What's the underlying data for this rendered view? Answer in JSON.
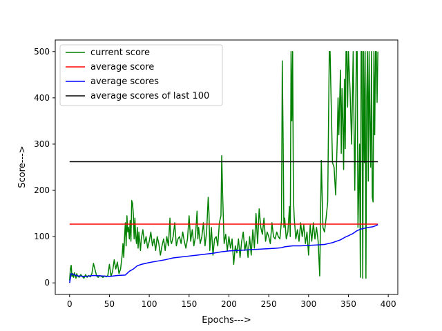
{
  "chart_data": {
    "type": "line",
    "title": "",
    "xlabel": "Epochs--->",
    "ylabel": "Score--->",
    "xlim": [
      -18,
      412
    ],
    "ylim": [
      -25,
      525
    ],
    "xticks": [
      0,
      50,
      100,
      150,
      200,
      250,
      300,
      350,
      400
    ],
    "yticks": [
      0,
      100,
      200,
      300,
      400,
      500
    ],
    "grid": false,
    "legend_position": "top-left",
    "series": [
      {
        "name": "current score",
        "color": "#008000",
        "points": [
          [
            0,
            5
          ],
          [
            1,
            30
          ],
          [
            2,
            38
          ],
          [
            3,
            14
          ],
          [
            4,
            20
          ],
          [
            5,
            12
          ],
          [
            6,
            22
          ],
          [
            7,
            16
          ],
          [
            8,
            10
          ],
          [
            9,
            20
          ],
          [
            10,
            15
          ],
          [
            12,
            12
          ],
          [
            14,
            18
          ],
          [
            16,
            14
          ],
          [
            18,
            10
          ],
          [
            20,
            18
          ],
          [
            22,
            12
          ],
          [
            24,
            16
          ],
          [
            26,
            13
          ],
          [
            28,
            20
          ],
          [
            30,
            42
          ],
          [
            32,
            28
          ],
          [
            34,
            15
          ],
          [
            36,
            12
          ],
          [
            38,
            16
          ],
          [
            40,
            14
          ],
          [
            42,
            12
          ],
          [
            44,
            15
          ],
          [
            46,
            13
          ],
          [
            48,
            16
          ],
          [
            50,
            40
          ],
          [
            52,
            14
          ],
          [
            54,
            25
          ],
          [
            56,
            50
          ],
          [
            58,
            30
          ],
          [
            60,
            45
          ],
          [
            62,
            20
          ],
          [
            64,
            30
          ],
          [
            66,
            60
          ],
          [
            67,
            85
          ],
          [
            68,
            55
          ],
          [
            69,
            100
          ],
          [
            70,
            130
          ],
          [
            71,
            80
          ],
          [
            72,
            145
          ],
          [
            73,
            110
          ],
          [
            74,
            120
          ],
          [
            75,
            95
          ],
          [
            76,
            135
          ],
          [
            77,
            90
          ],
          [
            78,
            178
          ],
          [
            79,
            172
          ],
          [
            80,
            150
          ],
          [
            81,
            95
          ],
          [
            82,
            140
          ],
          [
            83,
            100
          ],
          [
            84,
            85
          ],
          [
            85,
            120
          ],
          [
            86,
            75
          ],
          [
            87,
            110
          ],
          [
            88,
            90
          ],
          [
            89,
            70
          ],
          [
            90,
            95
          ],
          [
            92,
            115
          ],
          [
            94,
            85
          ],
          [
            96,
            100
          ],
          [
            98,
            75
          ],
          [
            100,
            90
          ],
          [
            102,
            110
          ],
          [
            104,
            80
          ],
          [
            106,
            95
          ],
          [
            108,
            70
          ],
          [
            110,
            100
          ],
          [
            112,
            85
          ],
          [
            114,
            60
          ],
          [
            116,
            80
          ],
          [
            118,
            95
          ],
          [
            120,
            70
          ],
          [
            122,
            100
          ],
          [
            124,
            80
          ],
          [
            126,
            140
          ],
          [
            127,
            90
          ],
          [
            128,
            85
          ],
          [
            130,
            100
          ],
          [
            132,
            130
          ],
          [
            134,
            80
          ],
          [
            136,
            95
          ],
          [
            138,
            100
          ],
          [
            140,
            85
          ],
          [
            142,
            110
          ],
          [
            144,
            90
          ],
          [
            146,
            75
          ],
          [
            148,
            95
          ],
          [
            150,
            145
          ],
          [
            152,
            90
          ],
          [
            154,
            115
          ],
          [
            156,
            80
          ],
          [
            158,
            100
          ],
          [
            160,
            155
          ],
          [
            161,
            95
          ],
          [
            162,
            120
          ],
          [
            164,
            85
          ],
          [
            166,
            100
          ],
          [
            168,
            130
          ],
          [
            170,
            80
          ],
          [
            172,
            110
          ],
          [
            174,
            185
          ],
          [
            175,
            150
          ],
          [
            176,
            70
          ],
          [
            178,
            120
          ],
          [
            180,
            60
          ],
          [
            182,
            95
          ],
          [
            184,
            100
          ],
          [
            186,
            80
          ],
          [
            188,
            130
          ],
          [
            190,
            145
          ],
          [
            191,
            275
          ],
          [
            192,
            200
          ],
          [
            193,
            140
          ],
          [
            194,
            85
          ],
          [
            196,
            105
          ],
          [
            198,
            70
          ],
          [
            200,
            100
          ],
          [
            202,
            75
          ],
          [
            204,
            95
          ],
          [
            206,
            40
          ],
          [
            208,
            80
          ],
          [
            210,
            65
          ],
          [
            212,
            95
          ],
          [
            214,
            55
          ],
          [
            216,
            90
          ],
          [
            218,
            110
          ],
          [
            220,
            70
          ],
          [
            222,
            90
          ],
          [
            224,
            55
          ],
          [
            226,
            100
          ],
          [
            228,
            60
          ],
          [
            230,
            115
          ],
          [
            232,
            75
          ],
          [
            234,
            150
          ],
          [
            236,
            85
          ],
          [
            238,
            160
          ],
          [
            240,
            120
          ],
          [
            242,
            105
          ],
          [
            244,
            140
          ],
          [
            246,
            90
          ],
          [
            248,
            110
          ],
          [
            250,
            100
          ],
          [
            252,
            85
          ],
          [
            254,
            130
          ],
          [
            256,
            100
          ],
          [
            258,
            95
          ],
          [
            260,
            110
          ],
          [
            262,
            100
          ],
          [
            264,
            95
          ],
          [
            266,
            135
          ],
          [
            267,
            480
          ],
          [
            268,
            320
          ],
          [
            269,
            120
          ],
          [
            270,
            140
          ],
          [
            272,
            95
          ],
          [
            274,
            110
          ],
          [
            276,
            165
          ],
          [
            277,
            100
          ],
          [
            278,
            500
          ],
          [
            279,
            350
          ],
          [
            280,
            500
          ],
          [
            281,
            180
          ],
          [
            282,
            140
          ],
          [
            284,
            95
          ],
          [
            286,
            115
          ],
          [
            288,
            90
          ],
          [
            290,
            130
          ],
          [
            292,
            100
          ],
          [
            294,
            125
          ],
          [
            296,
            85
          ],
          [
            298,
            110
          ],
          [
            300,
            60
          ],
          [
            302,
            125
          ],
          [
            304,
            90
          ],
          [
            306,
            130
          ],
          [
            308,
            95
          ],
          [
            310,
            120
          ],
          [
            312,
            90
          ],
          [
            314,
            15
          ],
          [
            316,
            265
          ],
          [
            318,
            120
          ],
          [
            320,
            110
          ],
          [
            322,
            140
          ],
          [
            324,
            175
          ],
          [
            326,
            500
          ],
          [
            327,
            500
          ],
          [
            328,
            420
          ],
          [
            330,
            260
          ],
          [
            332,
            250
          ],
          [
            334,
            190
          ],
          [
            336,
            310
          ],
          [
            337,
            400
          ],
          [
            338,
            320
          ],
          [
            340,
            460
          ],
          [
            341,
            280
          ],
          [
            342,
            420
          ],
          [
            343,
            350
          ],
          [
            344,
            245
          ],
          [
            345,
            440
          ],
          [
            346,
            290
          ],
          [
            347,
            500
          ],
          [
            348,
            500
          ],
          [
            349,
            380
          ],
          [
            350,
            500
          ],
          [
            352,
            420
          ],
          [
            354,
            300
          ],
          [
            356,
            500
          ],
          [
            358,
            200
          ],
          [
            360,
            500
          ],
          [
            361,
            500
          ],
          [
            362,
            120
          ],
          [
            363,
            200
          ],
          [
            364,
            300
          ],
          [
            365,
            12
          ],
          [
            366,
            500
          ],
          [
            367,
            500
          ],
          [
            368,
            10
          ],
          [
            369,
            500
          ],
          [
            370,
            260
          ],
          [
            371,
            500
          ],
          [
            372,
            10
          ],
          [
            373,
            400
          ],
          [
            374,
            500
          ],
          [
            375,
            220
          ],
          [
            376,
            500
          ],
          [
            377,
            350
          ],
          [
            378,
            250
          ],
          [
            379,
            500
          ],
          [
            380,
            185
          ],
          [
            381,
            175
          ],
          [
            382,
            500
          ],
          [
            383,
            320
          ],
          [
            384,
            500
          ],
          [
            385,
            500
          ],
          [
            386,
            390
          ],
          [
            387,
            500
          ]
        ]
      },
      {
        "name": "average score",
        "color": "#ff0000",
        "points": [
          [
            0,
            127
          ],
          [
            387,
            127
          ]
        ]
      },
      {
        "name": "average scores",
        "color": "#0000ff",
        "points": [
          [
            0,
            0
          ],
          [
            2,
            20
          ],
          [
            5,
            18
          ],
          [
            10,
            15
          ],
          [
            20,
            14
          ],
          [
            30,
            16
          ],
          [
            40,
            15
          ],
          [
            50,
            14
          ],
          [
            60,
            16
          ],
          [
            70,
            17
          ],
          [
            75,
            25
          ],
          [
            80,
            30
          ],
          [
            85,
            37
          ],
          [
            90,
            40
          ],
          [
            100,
            44
          ],
          [
            110,
            47
          ],
          [
            120,
            50
          ],
          [
            130,
            54
          ],
          [
            140,
            56
          ],
          [
            150,
            58
          ],
          [
            160,
            60
          ],
          [
            170,
            62
          ],
          [
            180,
            64
          ],
          [
            190,
            67
          ],
          [
            200,
            69
          ],
          [
            210,
            70
          ],
          [
            220,
            71
          ],
          [
            230,
            72
          ],
          [
            240,
            73
          ],
          [
            250,
            74
          ],
          [
            260,
            75
          ],
          [
            266,
            76
          ],
          [
            270,
            78
          ],
          [
            280,
            80
          ],
          [
            290,
            80
          ],
          [
            300,
            81
          ],
          [
            310,
            82
          ],
          [
            320,
            83
          ],
          [
            325,
            85
          ],
          [
            330,
            87
          ],
          [
            340,
            93
          ],
          [
            345,
            98
          ],
          [
            350,
            102
          ],
          [
            355,
            106
          ],
          [
            360,
            112
          ],
          [
            365,
            116
          ],
          [
            370,
            118
          ],
          [
            375,
            120
          ],
          [
            380,
            121
          ],
          [
            385,
            124
          ],
          [
            387,
            126
          ]
        ]
      },
      {
        "name": "average scores of last 100",
        "color": "#000000",
        "points": [
          [
            0,
            262
          ],
          [
            387,
            262
          ]
        ]
      }
    ]
  }
}
